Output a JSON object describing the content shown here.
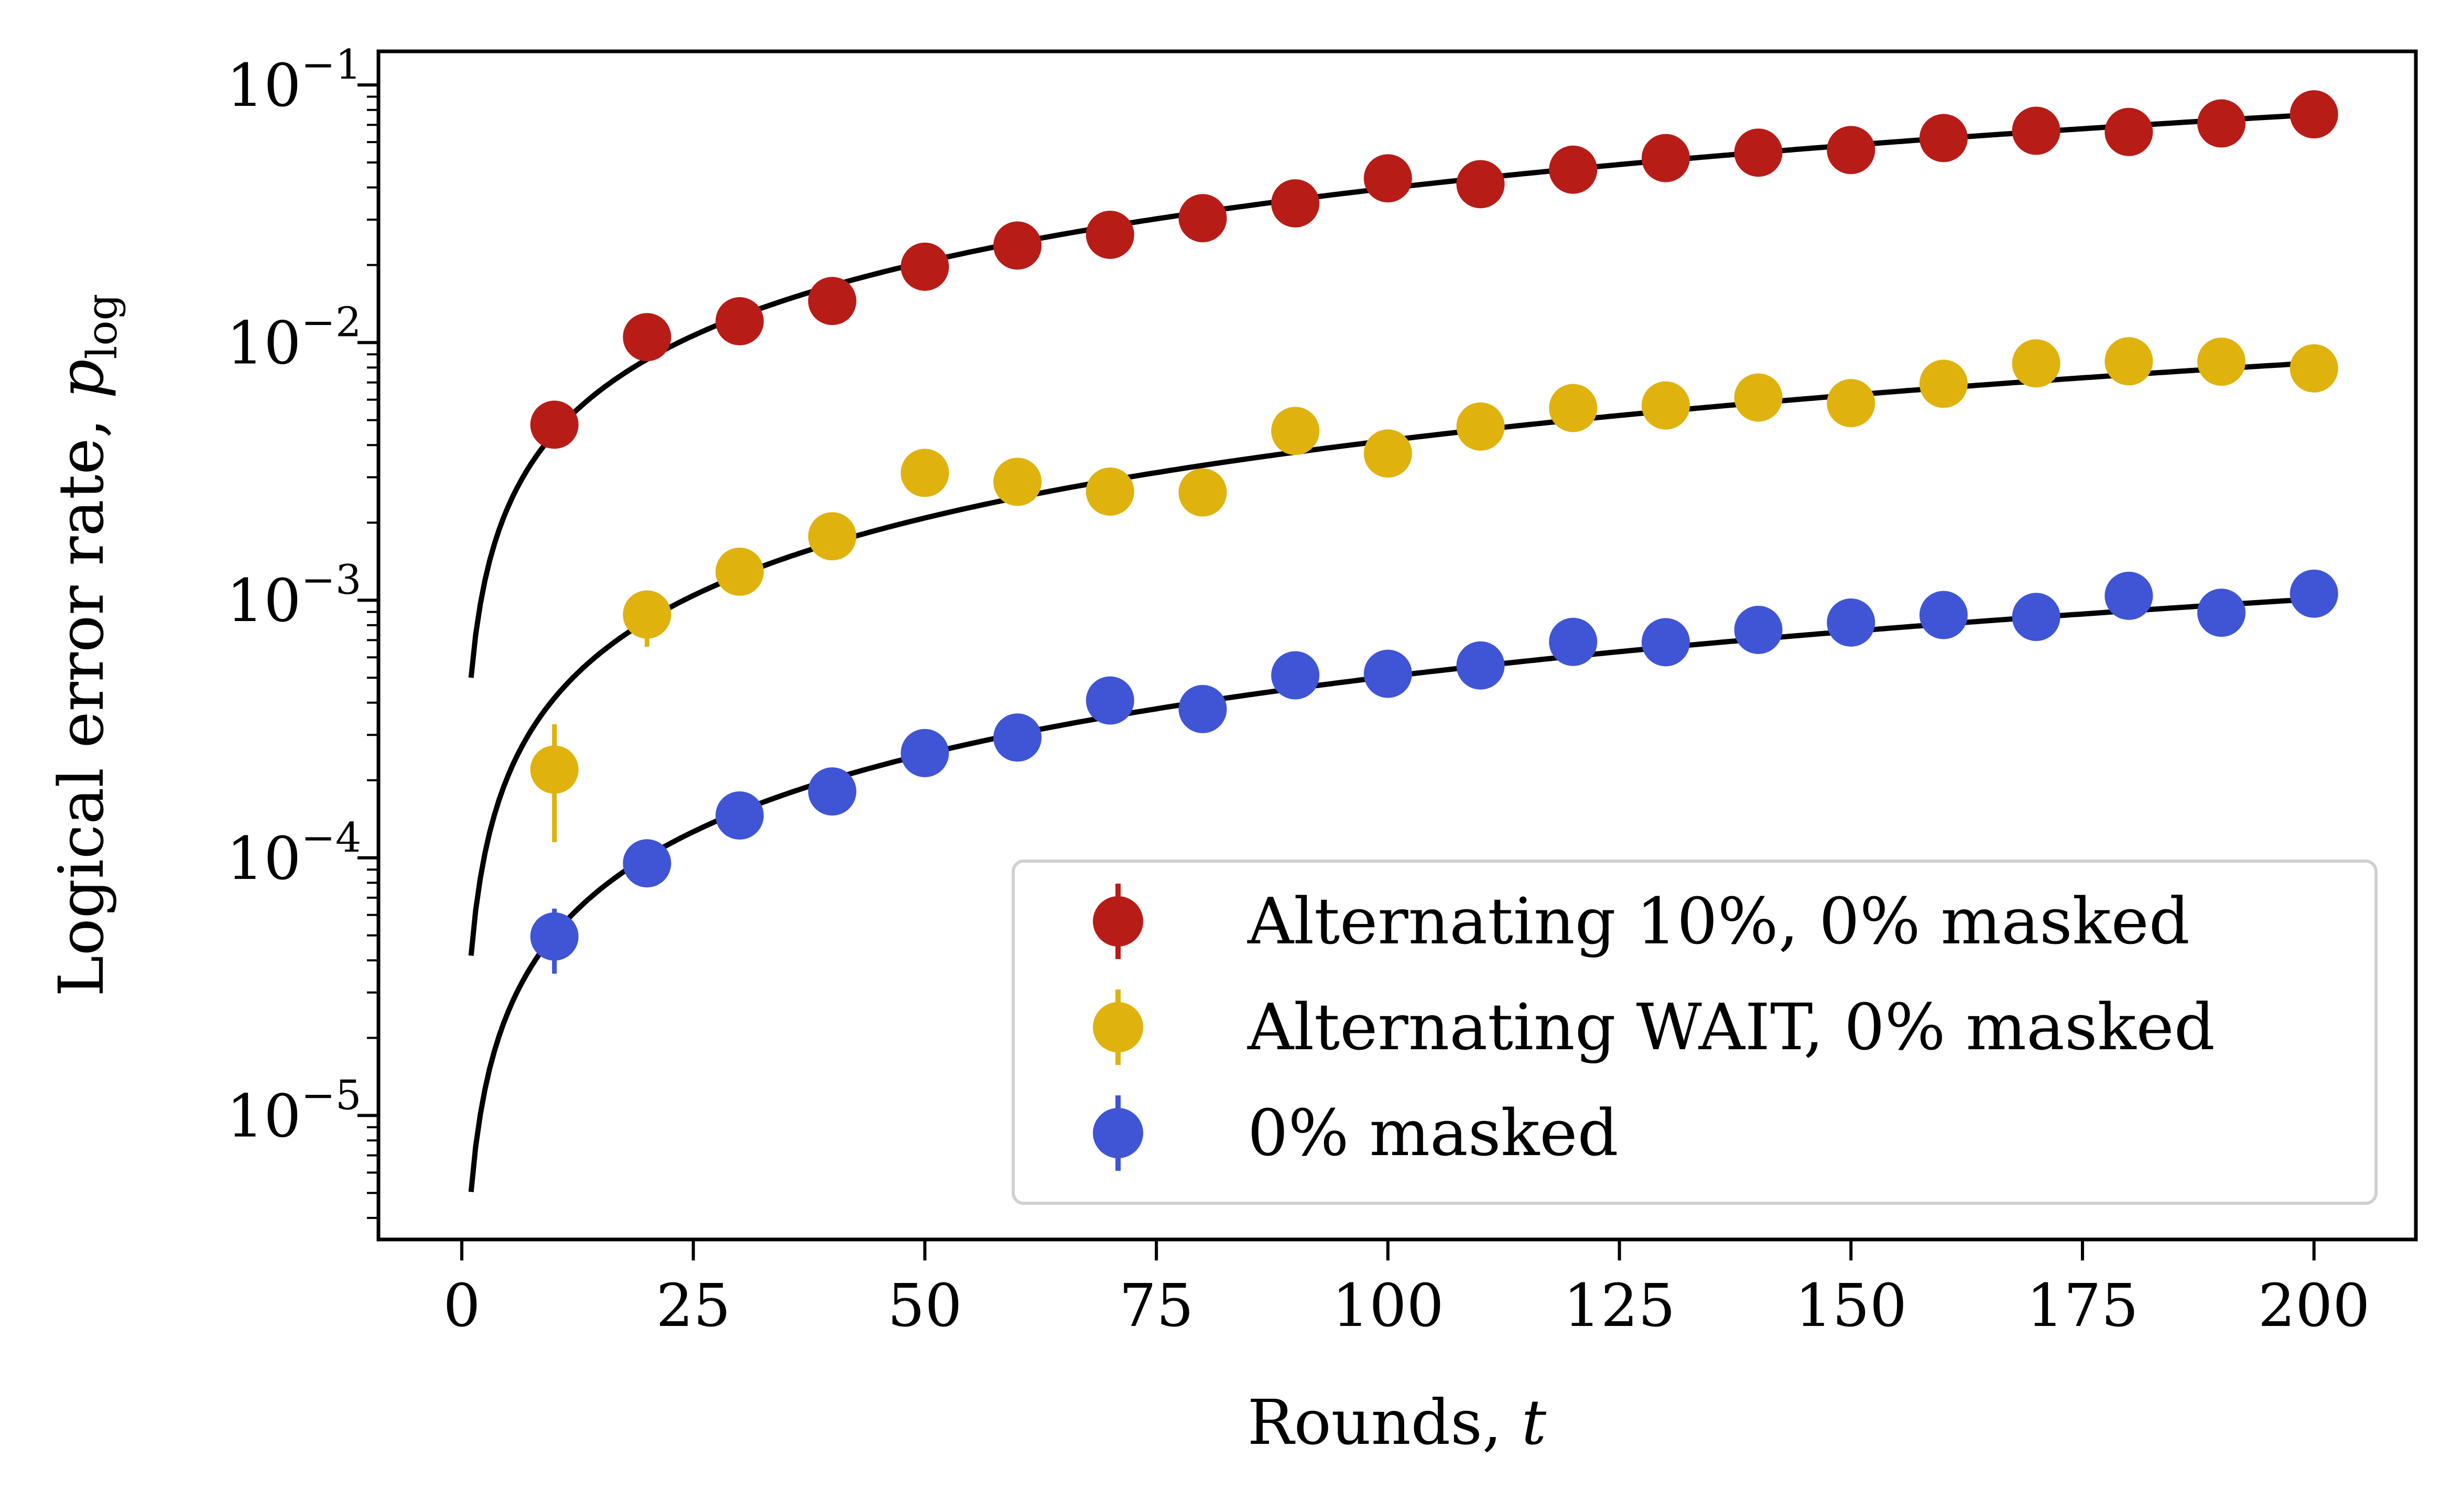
{
  "chart_data": {
    "type": "scatter",
    "xlabel": "Rounds, ",
    "xlabel_var": "t",
    "ylabel": "Logical error rate, ",
    "ylabel_var": "p",
    "ylabel_sub": "log",
    "xlim": [
      -9,
      211
    ],
    "ylim": [
      3.3e-06,
      0.135
    ],
    "yscale": "log",
    "grid": false,
    "legend_position": "lower-right",
    "x_ticks": [
      0,
      25,
      50,
      75,
      100,
      125,
      150,
      175,
      200
    ],
    "x_tick_labels": [
      "0",
      "25",
      "50",
      "75",
      "100",
      "125",
      "150",
      "175",
      "200"
    ],
    "y_ticks": [
      {
        "value": 0.1,
        "base": "10",
        "exp": "−1"
      },
      {
        "value": 0.01,
        "base": "10",
        "exp": "−2"
      },
      {
        "value": 0.001,
        "base": "10",
        "exp": "−3"
      },
      {
        "value": 0.0001,
        "base": "10",
        "exp": "−4"
      },
      {
        "value": 1e-05,
        "base": "10",
        "exp": "−5"
      }
    ],
    "series": [
      {
        "name": "Alternating 10%, 0% masked",
        "color": "#b81c17",
        "x": [
          10,
          20,
          30,
          40,
          50,
          60,
          70,
          80,
          90,
          100,
          110,
          120,
          130,
          140,
          150,
          160,
          170,
          180,
          190,
          200
        ],
        "y": [
          0.0048,
          0.0105,
          0.0121,
          0.0145,
          0.0197,
          0.0238,
          0.0262,
          0.0304,
          0.0347,
          0.0434,
          0.0412,
          0.0469,
          0.052,
          0.0546,
          0.0559,
          0.0622,
          0.0664,
          0.0657,
          0.0709,
          0.0769
        ],
        "err_low": [
          0.0045,
          0.0102,
          0.0118,
          0.0142,
          0.0193,
          0.0234,
          0.0258,
          0.03,
          0.0343,
          0.0429,
          0.0407,
          0.0464,
          0.0515,
          0.0541,
          0.0554,
          0.0617,
          0.0658,
          0.0651,
          0.0703,
          0.0763
        ],
        "err_high": [
          0.0051,
          0.0108,
          0.0124,
          0.0148,
          0.0201,
          0.0242,
          0.0266,
          0.0308,
          0.0351,
          0.0439,
          0.0417,
          0.0474,
          0.0525,
          0.0551,
          0.0564,
          0.0627,
          0.067,
          0.0663,
          0.0715,
          0.0775
        ],
        "fit": {
          "a": 0.0005,
          "p": 0.95
        }
      },
      {
        "name": "Alternating WAIT, 0% masked",
        "color": "#dfb20e",
        "x": [
          10,
          20,
          30,
          40,
          50,
          60,
          70,
          80,
          90,
          100,
          110,
          120,
          130,
          140,
          150,
          160,
          170,
          180,
          190,
          200
        ],
        "y": [
          0.00022,
          0.00088,
          0.00129,
          0.00177,
          0.00312,
          0.00288,
          0.00264,
          0.00262,
          0.00454,
          0.00371,
          0.00472,
          0.00557,
          0.0057,
          0.00612,
          0.00582,
          0.00692,
          0.0083,
          0.00846,
          0.00843,
          0.00794
        ],
        "err_low": [
          0.000115,
          0.00066,
          0.00118,
          0.00168,
          0.003,
          0.00277,
          0.00254,
          0.00252,
          0.0044,
          0.0036,
          0.0046,
          0.00545,
          0.00558,
          0.006,
          0.0057,
          0.00679,
          0.00816,
          0.00832,
          0.00829,
          0.00781
        ],
        "err_high": [
          0.00033,
          0.00104,
          0.0014,
          0.00186,
          0.00324,
          0.00299,
          0.00274,
          0.00272,
          0.00468,
          0.00382,
          0.00484,
          0.00569,
          0.00582,
          0.00624,
          0.00594,
          0.00705,
          0.00844,
          0.0086,
          0.00857,
          0.00807
        ],
        "fit": {
          "a": 4.17e-05,
          "p": 1.0
        }
      },
      {
        "name": "0% masked",
        "color": "#3f55d5",
        "x": [
          10,
          20,
          30,
          40,
          50,
          60,
          70,
          80,
          90,
          100,
          110,
          120,
          130,
          140,
          150,
          160,
          170,
          180,
          190,
          200
        ],
        "y": [
          4.95e-05,
          9.52e-05,
          0.000146,
          0.000181,
          0.000255,
          0.000293,
          0.000408,
          0.000378,
          0.000511,
          0.000518,
          0.000558,
          0.000689,
          0.000687,
          0.000767,
          0.000819,
          0.000876,
          0.000861,
          0.00104,
          0.000894,
          0.00106
        ],
        "err_low": [
          3.55e-05,
          7.7e-05,
          0.000133,
          0.000168,
          0.000241,
          0.000279,
          0.000392,
          0.000363,
          0.000494,
          0.000501,
          0.000541,
          0.00067,
          0.000668,
          0.000748,
          0.0008,
          0.000856,
          0.000841,
          0.001018,
          0.000874,
          0.001038
        ],
        "err_high": [
          6.35e-05,
          0.000113,
          0.000159,
          0.000194,
          0.000269,
          0.000307,
          0.000424,
          0.000393,
          0.000528,
          0.000535,
          0.000575,
          0.000708,
          0.000706,
          0.000786,
          0.000838,
          0.000896,
          0.000881,
          0.001062,
          0.000914,
          0.001082
        ],
        "fit": {
          "a": 5.05e-06,
          "p": 1.0
        }
      }
    ]
  }
}
